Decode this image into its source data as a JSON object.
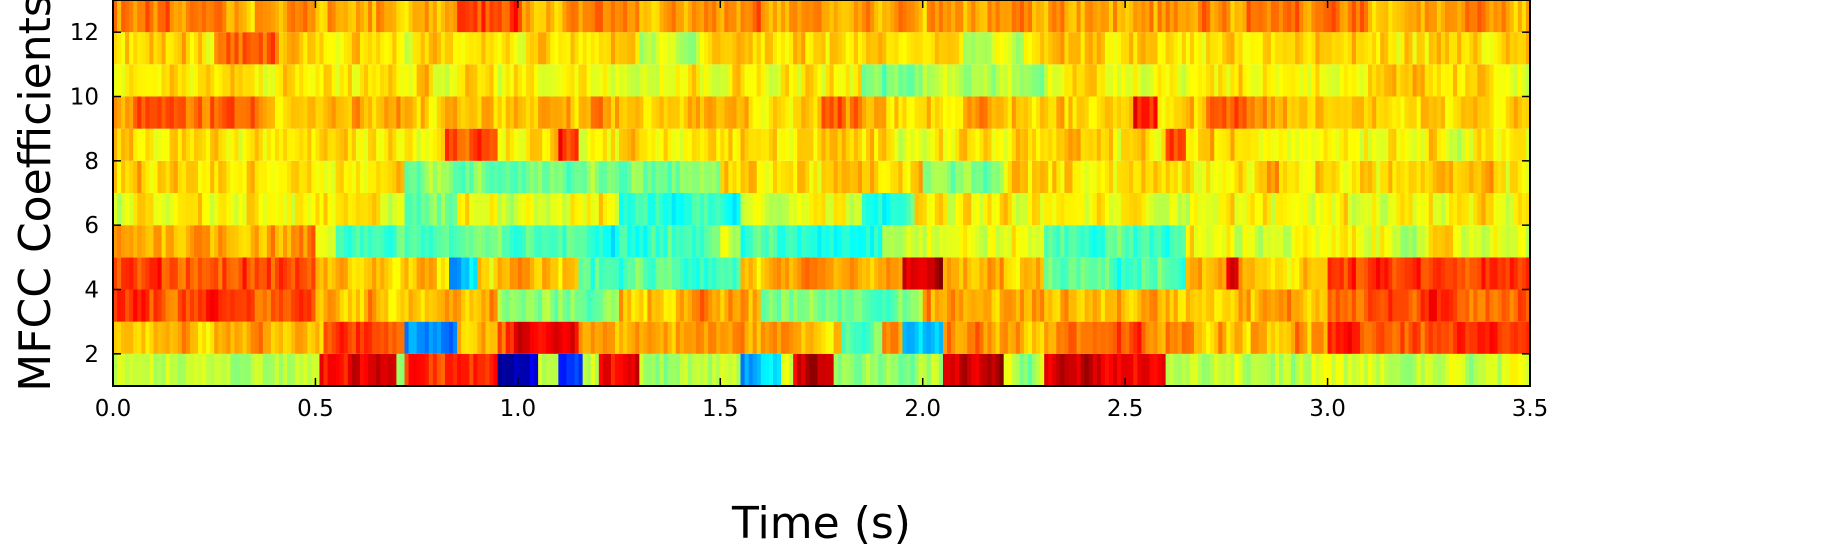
{
  "chart_data": {
    "type": "heatmap",
    "xlabel": "Time (s)",
    "ylabel": "MFCC Coefficients",
    "xlim": [
      0.0,
      3.5
    ],
    "ylim": [
      1,
      13
    ],
    "x_ticks": [
      "0.0",
      "0.5",
      "1.0",
      "1.5",
      "2.0",
      "2.5",
      "3.0",
      "3.5"
    ],
    "y_ticks": [
      "2",
      "4",
      "6",
      "8",
      "10",
      "12"
    ],
    "colormap": "jet",
    "grid": false,
    "rows": [
      {
        "coefficient": 1,
        "base": 0.55,
        "events": [
          {
            "start": 0.51,
            "end": 0.7,
            "value": 0.9
          },
          {
            "start": 0.72,
            "end": 0.95,
            "value": 0.85
          },
          {
            "start": 0.95,
            "end": 1.05,
            "value": 0.05
          },
          {
            "start": 1.1,
            "end": 1.16,
            "value": 0.15
          },
          {
            "start": 1.2,
            "end": 1.3,
            "value": 0.88
          },
          {
            "start": 1.55,
            "end": 1.65,
            "value": 0.3
          },
          {
            "start": 1.68,
            "end": 1.78,
            "value": 0.92
          },
          {
            "start": 2.05,
            "end": 2.2,
            "value": 0.92
          },
          {
            "start": 2.3,
            "end": 2.6,
            "value": 0.9
          }
        ]
      },
      {
        "coefficient": 2,
        "base": 0.72,
        "events": [
          {
            "start": 0.52,
            "end": 0.7,
            "value": 0.82
          },
          {
            "start": 0.72,
            "end": 0.85,
            "value": 0.25
          },
          {
            "start": 0.95,
            "end": 1.15,
            "value": 0.85
          },
          {
            "start": 1.8,
            "end": 1.9,
            "value": 0.45
          },
          {
            "start": 1.95,
            "end": 2.05,
            "value": 0.3
          },
          {
            "start": 2.35,
            "end": 2.55,
            "value": 0.78
          },
          {
            "start": 3.0,
            "end": 3.5,
            "value": 0.8
          }
        ]
      },
      {
        "coefficient": 3,
        "base": 0.7,
        "events": [
          {
            "start": 0.0,
            "end": 0.5,
            "value": 0.8
          },
          {
            "start": 0.95,
            "end": 1.25,
            "value": 0.5
          },
          {
            "start": 1.6,
            "end": 2.0,
            "value": 0.5
          },
          {
            "start": 3.0,
            "end": 3.5,
            "value": 0.8
          }
        ]
      },
      {
        "coefficient": 4,
        "base": 0.68,
        "events": [
          {
            "start": 0.0,
            "end": 0.5,
            "value": 0.8
          },
          {
            "start": 0.83,
            "end": 0.9,
            "value": 0.28
          },
          {
            "start": 1.15,
            "end": 1.55,
            "value": 0.45
          },
          {
            "start": 1.95,
            "end": 2.05,
            "value": 0.93
          },
          {
            "start": 2.3,
            "end": 2.65,
            "value": 0.45
          },
          {
            "start": 2.75,
            "end": 2.78,
            "value": 0.85
          },
          {
            "start": 3.0,
            "end": 3.5,
            "value": 0.8
          }
        ]
      },
      {
        "coefficient": 5,
        "base": 0.6,
        "events": [
          {
            "start": 0.0,
            "end": 0.5,
            "value": 0.72
          },
          {
            "start": 0.55,
            "end": 1.5,
            "value": 0.45
          },
          {
            "start": 1.55,
            "end": 1.9,
            "value": 0.42
          },
          {
            "start": 2.3,
            "end": 2.65,
            "value": 0.45
          }
        ]
      },
      {
        "coefficient": 6,
        "base": 0.62,
        "events": [
          {
            "start": 0.72,
            "end": 0.85,
            "value": 0.48
          },
          {
            "start": 1.25,
            "end": 1.55,
            "value": 0.42
          },
          {
            "start": 1.85,
            "end": 1.98,
            "value": 0.45
          }
        ]
      },
      {
        "coefficient": 7,
        "base": 0.66,
        "events": [
          {
            "start": 0.72,
            "end": 1.5,
            "value": 0.5
          },
          {
            "start": 2.0,
            "end": 2.2,
            "value": 0.5
          }
        ]
      },
      {
        "coefficient": 8,
        "base": 0.65,
        "events": [
          {
            "start": 0.82,
            "end": 0.95,
            "value": 0.8
          },
          {
            "start": 1.1,
            "end": 1.15,
            "value": 0.85
          },
          {
            "start": 2.6,
            "end": 2.65,
            "value": 0.8
          }
        ]
      },
      {
        "coefficient": 9,
        "base": 0.68,
        "events": [
          {
            "start": 0.05,
            "end": 0.4,
            "value": 0.78
          },
          {
            "start": 1.75,
            "end": 1.9,
            "value": 0.76
          },
          {
            "start": 2.52,
            "end": 2.58,
            "value": 0.9
          },
          {
            "start": 2.7,
            "end": 2.8,
            "value": 0.77
          }
        ]
      },
      {
        "coefficient": 10,
        "base": 0.64,
        "events": [
          {
            "start": 1.85,
            "end": 2.0,
            "value": 0.48
          },
          {
            "start": 2.0,
            "end": 2.3,
            "value": 0.55
          }
        ]
      },
      {
        "coefficient": 11,
        "base": 0.66,
        "events": [
          {
            "start": 0.25,
            "end": 0.4,
            "value": 0.75
          },
          {
            "start": 1.3,
            "end": 1.45,
            "value": 0.55
          },
          {
            "start": 2.1,
            "end": 2.25,
            "value": 0.55
          }
        ]
      },
      {
        "coefficient": 12,
        "base": 0.72,
        "events": [
          {
            "start": 0.85,
            "end": 1.0,
            "value": 0.8
          },
          {
            "start": 1.18,
            "end": 1.3,
            "value": 0.78
          },
          {
            "start": 2.9,
            "end": 3.1,
            "value": 0.77
          }
        ]
      }
    ]
  }
}
